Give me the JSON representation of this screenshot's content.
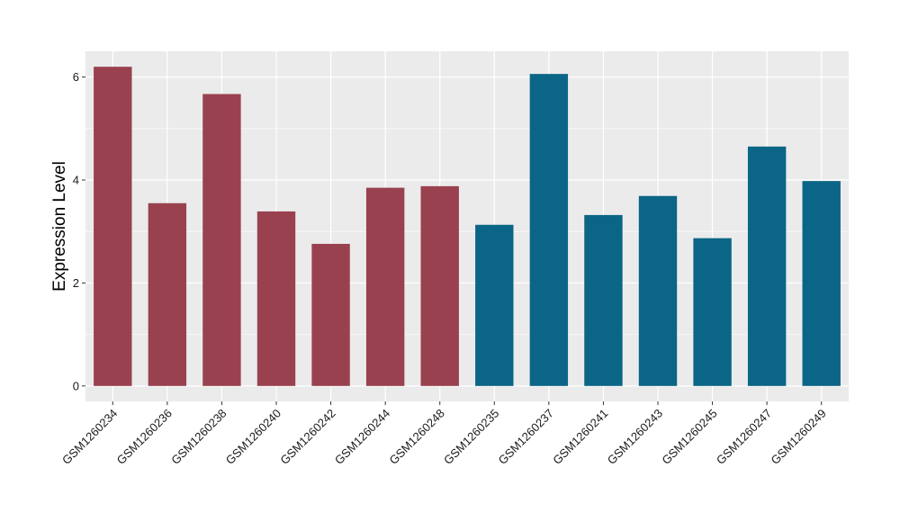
{
  "chart_data": {
    "type": "bar",
    "title": "",
    "xlabel": "",
    "ylabel": "Expression Level",
    "ylim": [
      -0.3,
      6.5
    ],
    "yticks": [
      0,
      2,
      4,
      6
    ],
    "grid": true,
    "legend": "none",
    "categories": [
      "GSM1260234",
      "GSM1260236",
      "GSM1260238",
      "GSM1260240",
      "GSM1260242",
      "GSM1260244",
      "GSM1260248",
      "GSM1260235",
      "GSM1260237",
      "GSM1260241",
      "GSM1260243",
      "GSM1260245",
      "GSM1260247",
      "GSM1260249"
    ],
    "values": [
      6.2,
      3.55,
      5.67,
      3.39,
      2.76,
      3.85,
      3.88,
      3.13,
      6.06,
      3.32,
      3.69,
      2.87,
      4.65,
      3.98
    ],
    "colors": [
      "#99414f",
      "#99414f",
      "#99414f",
      "#99414f",
      "#99414f",
      "#99414f",
      "#99414f",
      "#0b6586",
      "#0b6586",
      "#0b6586",
      "#0b6586",
      "#0b6586",
      "#0b6586",
      "#0b6586"
    ],
    "panel_color": "#ebebeb",
    "grid_color": "#ffffff"
  }
}
